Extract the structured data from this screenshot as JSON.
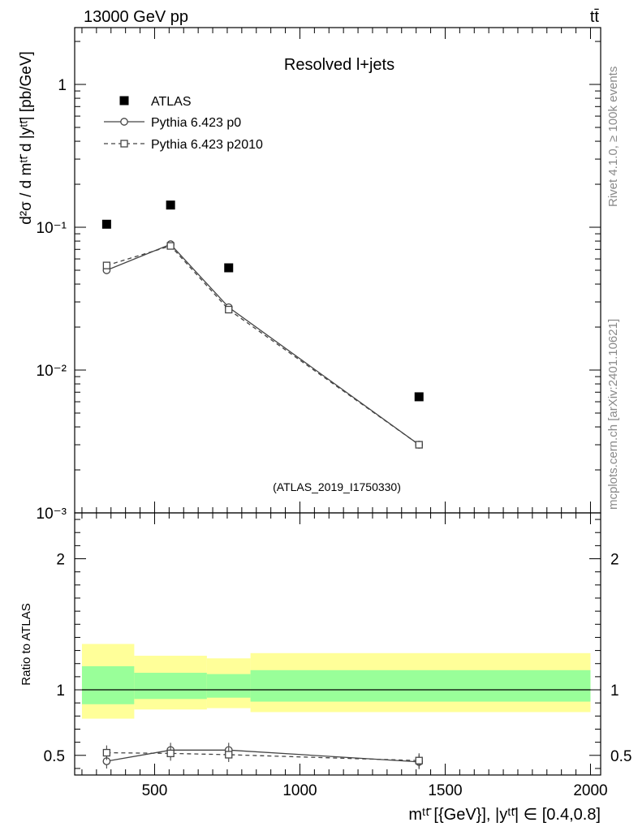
{
  "header": {
    "left": "13000 GeV pp",
    "right": "tt̄"
  },
  "side_labels": {
    "rivet": "Rivet 4.1.0, ≥ 100k events",
    "mcplots": "mcplots.cern.ch [arXiv:2401.10621]"
  },
  "colors": {
    "band_outer": "#ffff99",
    "band_inner": "#99ff99",
    "data": "#000000",
    "mc": "#444444"
  },
  "chart_data": [
    {
      "type": "scatter",
      "title": "Resolved l+jets",
      "watermark": "(ATLAS_2019_I1750330)",
      "ylabel": "d²σ / d mᵗᵗ̄ d |yᵗᵗ̄| [pb/GeV]",
      "yscale": "log",
      "ylim": [
        0.001,
        2.5
      ],
      "xlim": [
        225,
        2035
      ],
      "y_ticks": [
        {
          "value": 1,
          "label": "1"
        },
        {
          "value": 0.1,
          "label": "10⁻¹"
        },
        {
          "value": 0.01,
          "label": "10⁻²"
        },
        {
          "value": 0.001,
          "label": "10⁻³"
        }
      ],
      "legend": [
        {
          "label": "ATLAS",
          "marker": "filled-square"
        },
        {
          "label": "Pythia 6.423 p0",
          "marker": "open-circle",
          "line": "solid"
        },
        {
          "label": "Pythia 6.423 p2010",
          "marker": "open-square",
          "line": "dashed"
        }
      ],
      "series": [
        {
          "name": "ATLAS",
          "x": [
            335,
            555,
            755,
            1410
          ],
          "values": [
            0.105,
            0.143,
            0.052,
            0.0065
          ]
        },
        {
          "name": "Pythia 6.423 p0",
          "x": [
            335,
            555,
            755,
            1410
          ],
          "values": [
            0.05,
            0.076,
            0.0275,
            0.003
          ]
        },
        {
          "name": "Pythia 6.423 p2010",
          "x": [
            335,
            555,
            755,
            1410
          ],
          "values": [
            0.054,
            0.074,
            0.0265,
            0.003
          ]
        }
      ]
    },
    {
      "type": "line",
      "ylabel": "Ratio to ATLAS",
      "xlabel": "mᵗᵗ̄ [{GeV}], |yᵗᵗ̄| ∈ [0.4,0.8]",
      "ylim": [
        0.35,
        2.35
      ],
      "xlim": [
        225,
        2035
      ],
      "x_ticks": [
        500,
        1000,
        1500,
        2000
      ],
      "y_ticks": [
        0.5,
        1,
        2
      ],
      "bands": [
        {
          "x_low": 250,
          "x_high": 430,
          "outer": [
            0.78,
            1.35
          ],
          "inner": [
            0.89,
            1.18
          ]
        },
        {
          "x_low": 430,
          "x_high": 680,
          "outer": [
            0.85,
            1.26
          ],
          "inner": [
            0.93,
            1.13
          ]
        },
        {
          "x_low": 680,
          "x_high": 830,
          "outer": [
            0.86,
            1.24
          ],
          "inner": [
            0.94,
            1.12
          ]
        },
        {
          "x_low": 830,
          "x_high": 2000,
          "outer": [
            0.83,
            1.28
          ],
          "inner": [
            0.91,
            1.15
          ]
        }
      ],
      "series": [
        {
          "name": "Pythia 6.423 p0",
          "x": [
            335,
            555,
            755,
            1410
          ],
          "values": [
            0.455,
            0.54,
            0.54,
            0.45
          ]
        },
        {
          "name": "Pythia 6.423 p2010",
          "x": [
            335,
            555,
            755,
            1410
          ],
          "values": [
            0.52,
            0.515,
            0.505,
            0.46
          ]
        }
      ]
    }
  ]
}
